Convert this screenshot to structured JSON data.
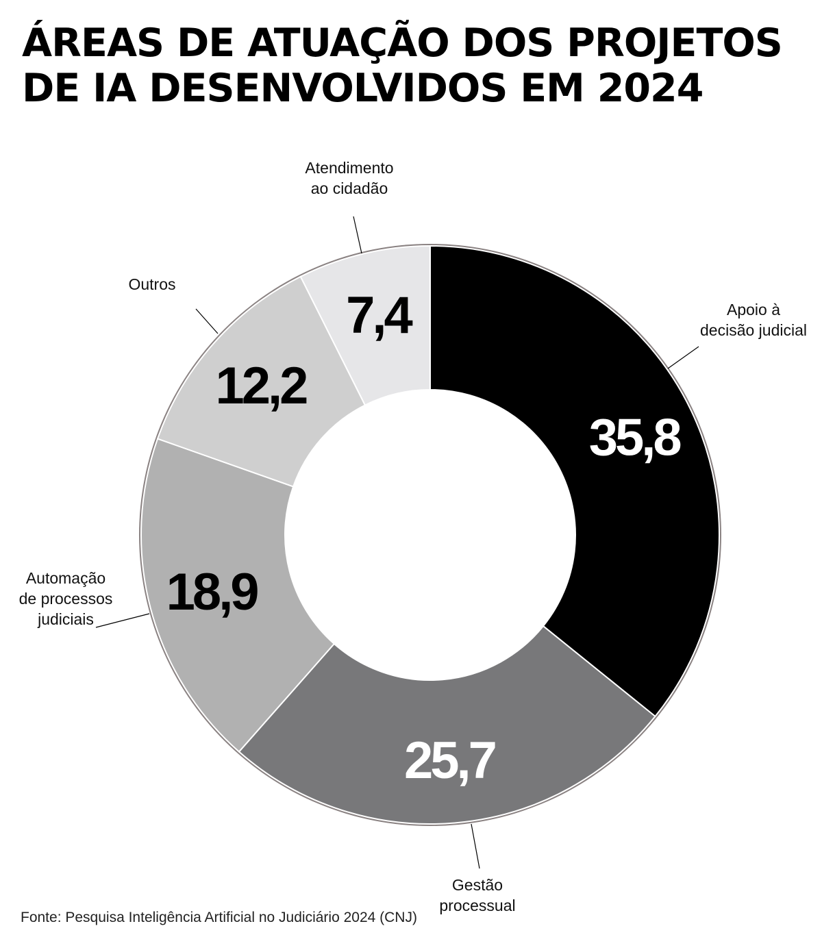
{
  "title": {
    "line1": "ÁREAS DE ATUAÇÃO DOS PROJETOS",
    "line2": "DE IA DESENVOLVIDOS EM 2024"
  },
  "chart_data": {
    "type": "pie",
    "variant": "donut",
    "slices": [
      {
        "label": "Apoio à decisão judicial",
        "label_lines": [
          "Apoio à",
          "decisão judicial"
        ],
        "value": 35.8,
        "display": "35,8",
        "color": "#000000",
        "value_color": "#ffffff"
      },
      {
        "label": "Gestão processual",
        "label_lines": [
          "Gestão",
          "processual"
        ],
        "value": 25.7,
        "display": "25,7",
        "color": "#78787a",
        "value_color": "#ffffff"
      },
      {
        "label": "Automação de processos judiciais",
        "label_lines": [
          "Automação",
          "de processos",
          "judiciais"
        ],
        "value": 18.9,
        "display": "18,9",
        "color": "#b1b1b1",
        "value_color": "#000000"
      },
      {
        "label": "Outros",
        "label_lines": [
          "Outros"
        ],
        "value": 12.2,
        "display": "12,2",
        "color": "#cfcfcf",
        "value_color": "#000000"
      },
      {
        "label": "Atendimento ao cidadão",
        "label_lines": [
          "Atendimento",
          "ao cidadão"
        ],
        "value": 7.4,
        "display": "7,4",
        "color": "#e6e6e8",
        "value_color": "#000000"
      }
    ],
    "start": "top, clockwise",
    "colors": {
      "ring_shadow": "#8a8282",
      "leader": "#000000"
    }
  },
  "source": "Fonte: Pesquisa Inteligência Artificial no Judiciário 2024 (CNJ)"
}
